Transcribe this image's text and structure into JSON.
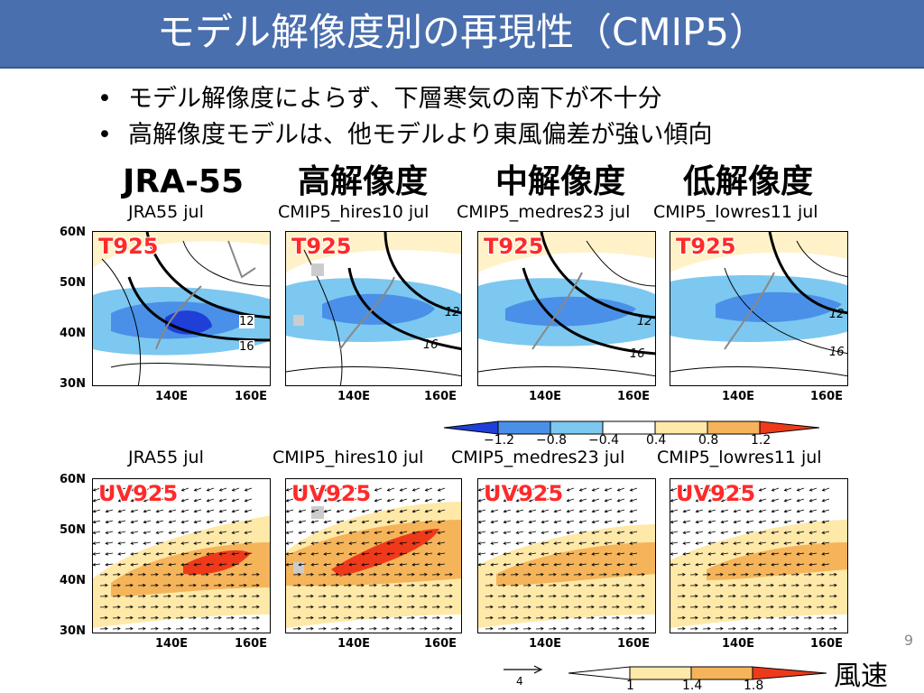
{
  "slide": {
    "title": "モデル解像度別の再現性（CMIP5）",
    "bullets": [
      "モデル解像度によらず、下層寒気の南下が不十分",
      "高解像度モデルは、他モデルより東風偏差が強い傾向"
    ],
    "page_number": "9"
  },
  "columns": {
    "jra": "JRA-55",
    "hires": "高解像度",
    "medres": "中解像度",
    "lowres": "低解像度"
  },
  "top_row": {
    "panel_label": "T925",
    "subtitles": [
      "JRA55  jul",
      "CMIP5_hires10  jul",
      "CMIP5_medres23  jul",
      "CMIP5_lowres11  jul"
    ],
    "contour_labels": [
      "12",
      "16"
    ]
  },
  "bottom_row": {
    "panel_label": "UV925",
    "subtitles": [
      "JRA55  jul",
      "CMIP5_hires10  jul",
      "CMIP5_medres23  jul",
      "CMIP5_lowres11  jul"
    ]
  },
  "axes": {
    "lat_labels": [
      "60N",
      "50N",
      "40N",
      "30N"
    ],
    "lon_labels": [
      "140E",
      "160E"
    ]
  },
  "colorbar_temp": {
    "labels": [
      "−1.2",
      "−0.8",
      "−0.4",
      "0.4",
      "0.8",
      "1.2"
    ],
    "colors": [
      "#1f3fd8",
      "#4a90e8",
      "#7cc8f0",
      "#ffffff",
      "#ffe9a8",
      "#f5b45a",
      "#ee3a1a"
    ]
  },
  "colorbar_wind": {
    "labels": [
      "1",
      "1.4",
      "1.8"
    ],
    "colors": [
      "#ffffff",
      "#ffe9a8",
      "#f5b45a",
      "#ee3a1a"
    ],
    "label": "風速",
    "reference_vector": "4"
  },
  "icons": {
    "reference_arrow": "arrow-right-icon"
  }
}
